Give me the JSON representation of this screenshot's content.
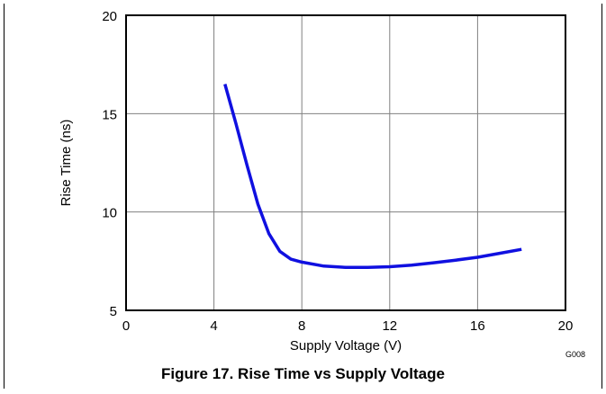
{
  "caption": "Figure 17. Rise Time vs Supply Voltage",
  "graph_id": "G008",
  "colors": {
    "series": "#1010e0",
    "grid": "#808080",
    "axis": "#000000"
  },
  "chart_data": {
    "type": "line",
    "title": "",
    "xlabel": "Supply Voltage (V)",
    "ylabel": "Rise Time (ns)",
    "xlim": [
      0,
      20
    ],
    "ylim": [
      5,
      20
    ],
    "xticks": [
      0,
      4,
      8,
      12,
      16,
      20
    ],
    "yticks": [
      5,
      10,
      15,
      20
    ],
    "grid": true,
    "series": [
      {
        "x": [
          4.5,
          5.0,
          5.5,
          6.0,
          6.5,
          7.0,
          7.5,
          8.0,
          9.0,
          10.0,
          11.0,
          12.0,
          13.0,
          14.0,
          15.0,
          16.0,
          17.0,
          18.0
        ],
        "y": [
          16.5,
          14.5,
          12.4,
          10.4,
          8.9,
          8.0,
          7.6,
          7.45,
          7.25,
          7.18,
          7.18,
          7.22,
          7.3,
          7.42,
          7.55,
          7.7,
          7.9,
          8.1
        ]
      }
    ]
  }
}
